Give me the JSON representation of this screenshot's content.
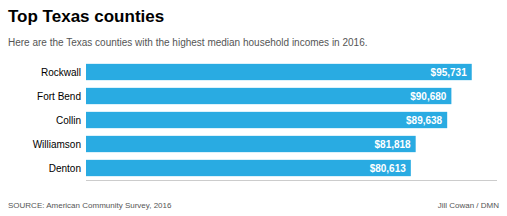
{
  "chart_data": {
    "type": "bar",
    "orientation": "horizontal",
    "title": "Top Texas counties",
    "subtitle": "Here are the Texas counties with the highest median household incomes in 2016.",
    "categories": [
      "Rockwall",
      "Fort Bend",
      "Collin",
      "Williamson",
      "Denton"
    ],
    "values": [
      95731,
      90680,
      89638,
      81818,
      80613
    ],
    "value_labels": [
      "$95,731",
      "$90,680",
      "$89,638",
      "$81,818",
      "$80,613"
    ],
    "data_labels": true,
    "color": "#29ABE2",
    "xlim": [
      0,
      102000
    ],
    "tick_labels": "y",
    "annotations": [
      "SOURCE: American Community Survey, 2016",
      "Jill Cowan / DMN"
    ]
  }
}
